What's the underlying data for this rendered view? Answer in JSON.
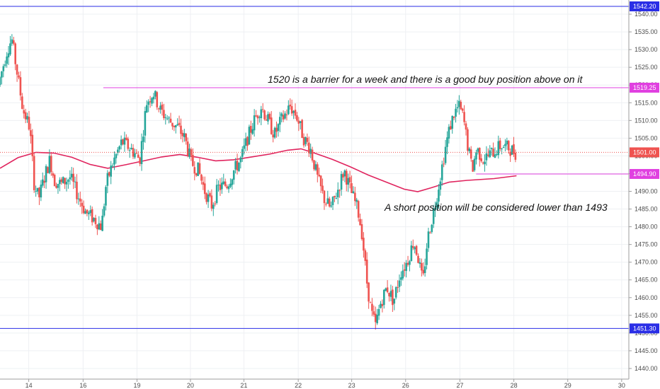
{
  "chart_data": {
    "type": "candlestick",
    "title": "",
    "ylim": [
      1437,
      1544
    ],
    "y_ticks": [
      1440,
      1445,
      1450,
      1455,
      1460,
      1465,
      1470,
      1475,
      1480,
      1485,
      1490,
      1495,
      1500,
      1505,
      1510,
      1515,
      1520,
      1525,
      1530,
      1535,
      1540
    ],
    "x_ticks": [
      {
        "label": "14",
        "x": 6.4
      },
      {
        "label": "16",
        "x": 18.5
      },
      {
        "label": "19",
        "x": 30.5
      },
      {
        "label": "20",
        "x": 42.4
      },
      {
        "label": "21",
        "x": 54.3
      },
      {
        "label": "22",
        "x": 66.4
      },
      {
        "label": "23",
        "x": 78.3
      },
      {
        "label": "26",
        "x": 90.3
      },
      {
        "label": "27",
        "x": 102.4
      },
      {
        "label": "28",
        "x": 114.4
      },
      {
        "label": "29",
        "x": 126.4
      },
      {
        "label": "30",
        "x": 138.4
      }
    ],
    "horizontal_levels": [
      {
        "value": 1542.2,
        "label": "1542.20",
        "color": "#2a2ee6"
      },
      {
        "value": 1519.25,
        "label": "1519.25",
        "color": "#e040e0"
      },
      {
        "value": 1494.9,
        "label": "1494.90",
        "color": "#e040e0"
      },
      {
        "value": 1451.3,
        "label": "1451.30",
        "color": "#2a2ee6"
      }
    ],
    "current_price": {
      "value": 1501.0,
      "label": "1501.00",
      "color": "#ef5350"
    },
    "moving_average": {
      "color": "#e0245e",
      "points": [
        [
          0,
          1496.5
        ],
        [
          4,
          1499.5
        ],
        [
          8,
          1501.0
        ],
        [
          12,
          1500.8
        ],
        [
          16,
          1499.6
        ],
        [
          20,
          1497.6
        ],
        [
          24,
          1496.5
        ],
        [
          28,
          1497.5
        ],
        [
          32,
          1498.6
        ],
        [
          36,
          1499.7
        ],
        [
          40,
          1500.4
        ],
        [
          44,
          1499.6
        ],
        [
          48,
          1498.6
        ],
        [
          52,
          1498.9
        ],
        [
          56,
          1499.7
        ],
        [
          60,
          1500.5
        ],
        [
          64,
          1501.6
        ],
        [
          67,
          1502.0
        ],
        [
          70,
          1500.8
        ],
        [
          74,
          1499.0
        ],
        [
          78,
          1496.9
        ],
        [
          82,
          1494.6
        ],
        [
          86,
          1492.6
        ],
        [
          90,
          1490.6
        ],
        [
          93,
          1489.9
        ],
        [
          96,
          1491.0
        ],
        [
          100,
          1492.6
        ],
        [
          104,
          1493.1
        ],
        [
          110,
          1493.6
        ],
        [
          115,
          1494.4
        ]
      ]
    },
    "path_points": [
      [
        0,
        1520
      ],
      [
        2,
        1530
      ],
      [
        3,
        1533
      ],
      [
        4,
        1525
      ],
      [
        5.5,
        1513
      ],
      [
        7,
        1508
      ],
      [
        8,
        1492
      ],
      [
        9,
        1488
      ],
      [
        10.5,
        1495
      ],
      [
        11.5,
        1499
      ],
      [
        12.5,
        1493
      ],
      [
        14,
        1492
      ],
      [
        16,
        1494
      ],
      [
        18,
        1488
      ],
      [
        19.5,
        1484
      ],
      [
        21.5,
        1482
      ],
      [
        23,
        1480
      ],
      [
        24,
        1492
      ],
      [
        25.5,
        1498
      ],
      [
        27.5,
        1504
      ],
      [
        29.5,
        1502
      ],
      [
        31.5,
        1499
      ],
      [
        33,
        1515
      ],
      [
        34.5,
        1518
      ],
      [
        36,
        1513
      ],
      [
        38,
        1510
      ],
      [
        40,
        1508
      ],
      [
        41.5,
        1505
      ],
      [
        43,
        1498
      ],
      [
        44.5,
        1496
      ],
      [
        46,
        1490
      ],
      [
        47.5,
        1486
      ],
      [
        49,
        1491
      ],
      [
        51,
        1492
      ],
      [
        52.5,
        1496
      ],
      [
        54,
        1499
      ],
      [
        55.5,
        1505
      ],
      [
        57,
        1510
      ],
      [
        58.5,
        1514
      ],
      [
        60,
        1510
      ],
      [
        61.5,
        1506
      ],
      [
        63,
        1510
      ],
      [
        65,
        1514
      ],
      [
        66.5,
        1511
      ],
      [
        68,
        1505
      ],
      [
        69.5,
        1502
      ],
      [
        71,
        1494
      ],
      [
        72.5,
        1488
      ],
      [
        74,
        1485
      ],
      [
        75.5,
        1490
      ],
      [
        77,
        1496
      ],
      [
        78.5,
        1490
      ],
      [
        80,
        1485
      ],
      [
        81,
        1478
      ],
      [
        82,
        1465
      ],
      [
        83,
        1456
      ],
      [
        84,
        1452
      ],
      [
        85,
        1458
      ],
      [
        86.5,
        1463
      ],
      [
        88,
        1459
      ],
      [
        89.5,
        1467
      ],
      [
        91,
        1470
      ],
      [
        92.5,
        1476
      ],
      [
        93.5,
        1471
      ],
      [
        94.5,
        1464
      ],
      [
        95.5,
        1476
      ],
      [
        96.5,
        1482
      ],
      [
        97.5,
        1488
      ],
      [
        98.5,
        1495
      ],
      [
        99.5,
        1502
      ],
      [
        100.5,
        1508
      ],
      [
        101.5,
        1512
      ],
      [
        102.5,
        1514
      ],
      [
        103.5,
        1511
      ],
      [
        104.5,
        1503
      ],
      [
        105.5,
        1496
      ],
      [
        106.5,
        1502
      ],
      [
        108,
        1499
      ],
      [
        110,
        1501
      ],
      [
        112,
        1503
      ],
      [
        114,
        1502
      ],
      [
        115,
        1501
      ]
    ],
    "plot_x_range": [
      0,
      140
    ],
    "annotations": [
      {
        "text": "1520 is a barrier for a week  and there is a good buy position above on it"
      },
      {
        "text": "A short position will be considered lower than 1493"
      }
    ],
    "candle_up_color": "#26a69a",
    "candle_down_color": "#ef5350",
    "grid": true
  }
}
